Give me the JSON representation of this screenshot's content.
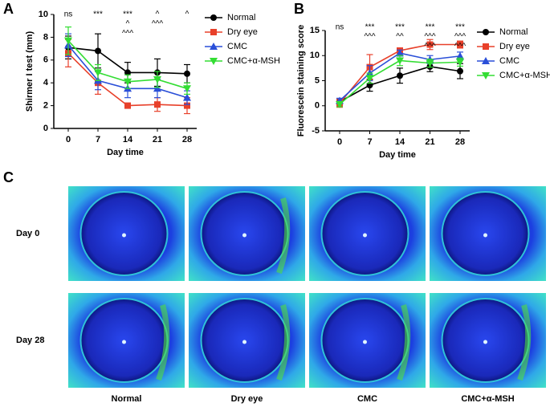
{
  "panels": [
    "A",
    "B",
    "C"
  ],
  "chart_data": [
    {
      "type": "line",
      "xlabel": "Day time",
      "ylabel": "Shirmer I test (mm)",
      "categories": [
        "0",
        "7",
        "14",
        "21",
        "28"
      ],
      "ylim": [
        0,
        10
      ],
      "yticks": [
        0,
        2,
        4,
        6,
        8,
        10
      ],
      "legend": "right",
      "series": [
        {
          "name": "Normal",
          "color": "#000000",
          "marker": "circle",
          "values": [
            7.1,
            6.8,
            4.9,
            4.9,
            4.8
          ],
          "errors": [
            1.0,
            1.5,
            0.9,
            1.2,
            0.8
          ]
        },
        {
          "name": "Dry eye",
          "color": "#e8402a",
          "marker": "square",
          "values": [
            6.6,
            4.0,
            2.0,
            2.1,
            2.0
          ],
          "errors": [
            1.2,
            1.0,
            0.1,
            0.6,
            0.7
          ]
        },
        {
          "name": "CMC",
          "color": "#2a4fd8",
          "marker": "triangle-up",
          "values": [
            7.3,
            4.2,
            3.5,
            3.5,
            2.7
          ],
          "errors": [
            1.0,
            0.8,
            0.8,
            0.8,
            0.6
          ]
        },
        {
          "name": "CMC+α-MSH",
          "color": "#33dd33",
          "marker": "triangle-down",
          "values": [
            7.7,
            4.9,
            4.1,
            4.3,
            3.5
          ],
          "errors": [
            1.2,
            0.7,
            0.6,
            0.7,
            0.5
          ]
        }
      ],
      "annotations": [
        {
          "text": "ns",
          "category": 0,
          "color": "#333333"
        },
        {
          "text": "***",
          "category": 1,
          "color": "#e8402a"
        },
        {
          "text": "***",
          "category": 2,
          "color": "#e8402a"
        },
        {
          "text": "^",
          "category": 2,
          "color": "#2a4fd8"
        },
        {
          "text": "^^^",
          "category": 2,
          "color": "#33dd33"
        },
        {
          "text": "^",
          "category": 3,
          "color": "#2a4fd8"
        },
        {
          "text": "^^^",
          "category": 3,
          "color": "#33dd33"
        },
        {
          "text": "^",
          "category": 4,
          "color": "#33dd33"
        }
      ]
    },
    {
      "type": "line",
      "xlabel": "Day time",
      "ylabel": "Fluorescein staining score",
      "categories": [
        "0",
        "7",
        "14",
        "21",
        "28"
      ],
      "ylim": [
        -5,
        15
      ],
      "yticks": [
        -5,
        0,
        5,
        10,
        15
      ],
      "legend": "right",
      "series": [
        {
          "name": "Normal",
          "color": "#000000",
          "marker": "circle",
          "values": [
            0.8,
            4.1,
            6.0,
            7.8,
            6.9
          ],
          "errors": [
            0.5,
            1.2,
            1.5,
            1.0,
            1.5
          ]
        },
        {
          "name": "Dry eye",
          "color": "#e8402a",
          "marker": "square",
          "values": [
            0.5,
            7.7,
            11.0,
            12.2,
            12.2
          ],
          "errors": [
            0.8,
            2.5,
            0.5,
            1.0,
            0.7
          ]
        },
        {
          "name": "CMC",
          "color": "#2a4fd8",
          "marker": "triangle-up",
          "values": [
            1.0,
            6.5,
            10.5,
            9.2,
            9.9
          ],
          "errors": [
            0.5,
            1.5,
            0.6,
            0.8,
            0.8
          ]
        },
        {
          "name": "CMC+α-MSH",
          "color": "#33dd33",
          "marker": "triangle-down",
          "values": [
            0.3,
            5.5,
            9.0,
            8.5,
            8.7
          ],
          "errors": [
            0.5,
            1.0,
            1.0,
            0.8,
            0.8
          ]
        }
      ],
      "annotations": [
        {
          "text": "ns",
          "category": 0,
          "color": "#333333"
        },
        {
          "text": "***",
          "category": 1,
          "color": "#e8402a"
        },
        {
          "text": "^^^",
          "category": 1,
          "color": "#33dd33"
        },
        {
          "text": "***",
          "category": 2,
          "color": "#e8402a"
        },
        {
          "text": "^^",
          "category": 2,
          "color": "#33dd33"
        },
        {
          "text": "***",
          "category": 3,
          "color": "#e8402a"
        },
        {
          "text": "^^^",
          "category": 3,
          "color": "#33dd33"
        },
        {
          "text": "^^^",
          "category": 3,
          "color": "#2a4fd8"
        },
        {
          "text": "***",
          "category": 4,
          "color": "#e8402a"
        },
        {
          "text": "^^^",
          "category": 4,
          "color": "#33dd33"
        },
        {
          "text": "^^^",
          "category": 4,
          "color": "#2a4fd8"
        }
      ]
    }
  ],
  "images": {
    "rows": [
      "Day 0",
      "Day 28"
    ],
    "columns": [
      "Normal",
      "Dry eye",
      "CMC",
      "CMC+α-MSH"
    ]
  }
}
